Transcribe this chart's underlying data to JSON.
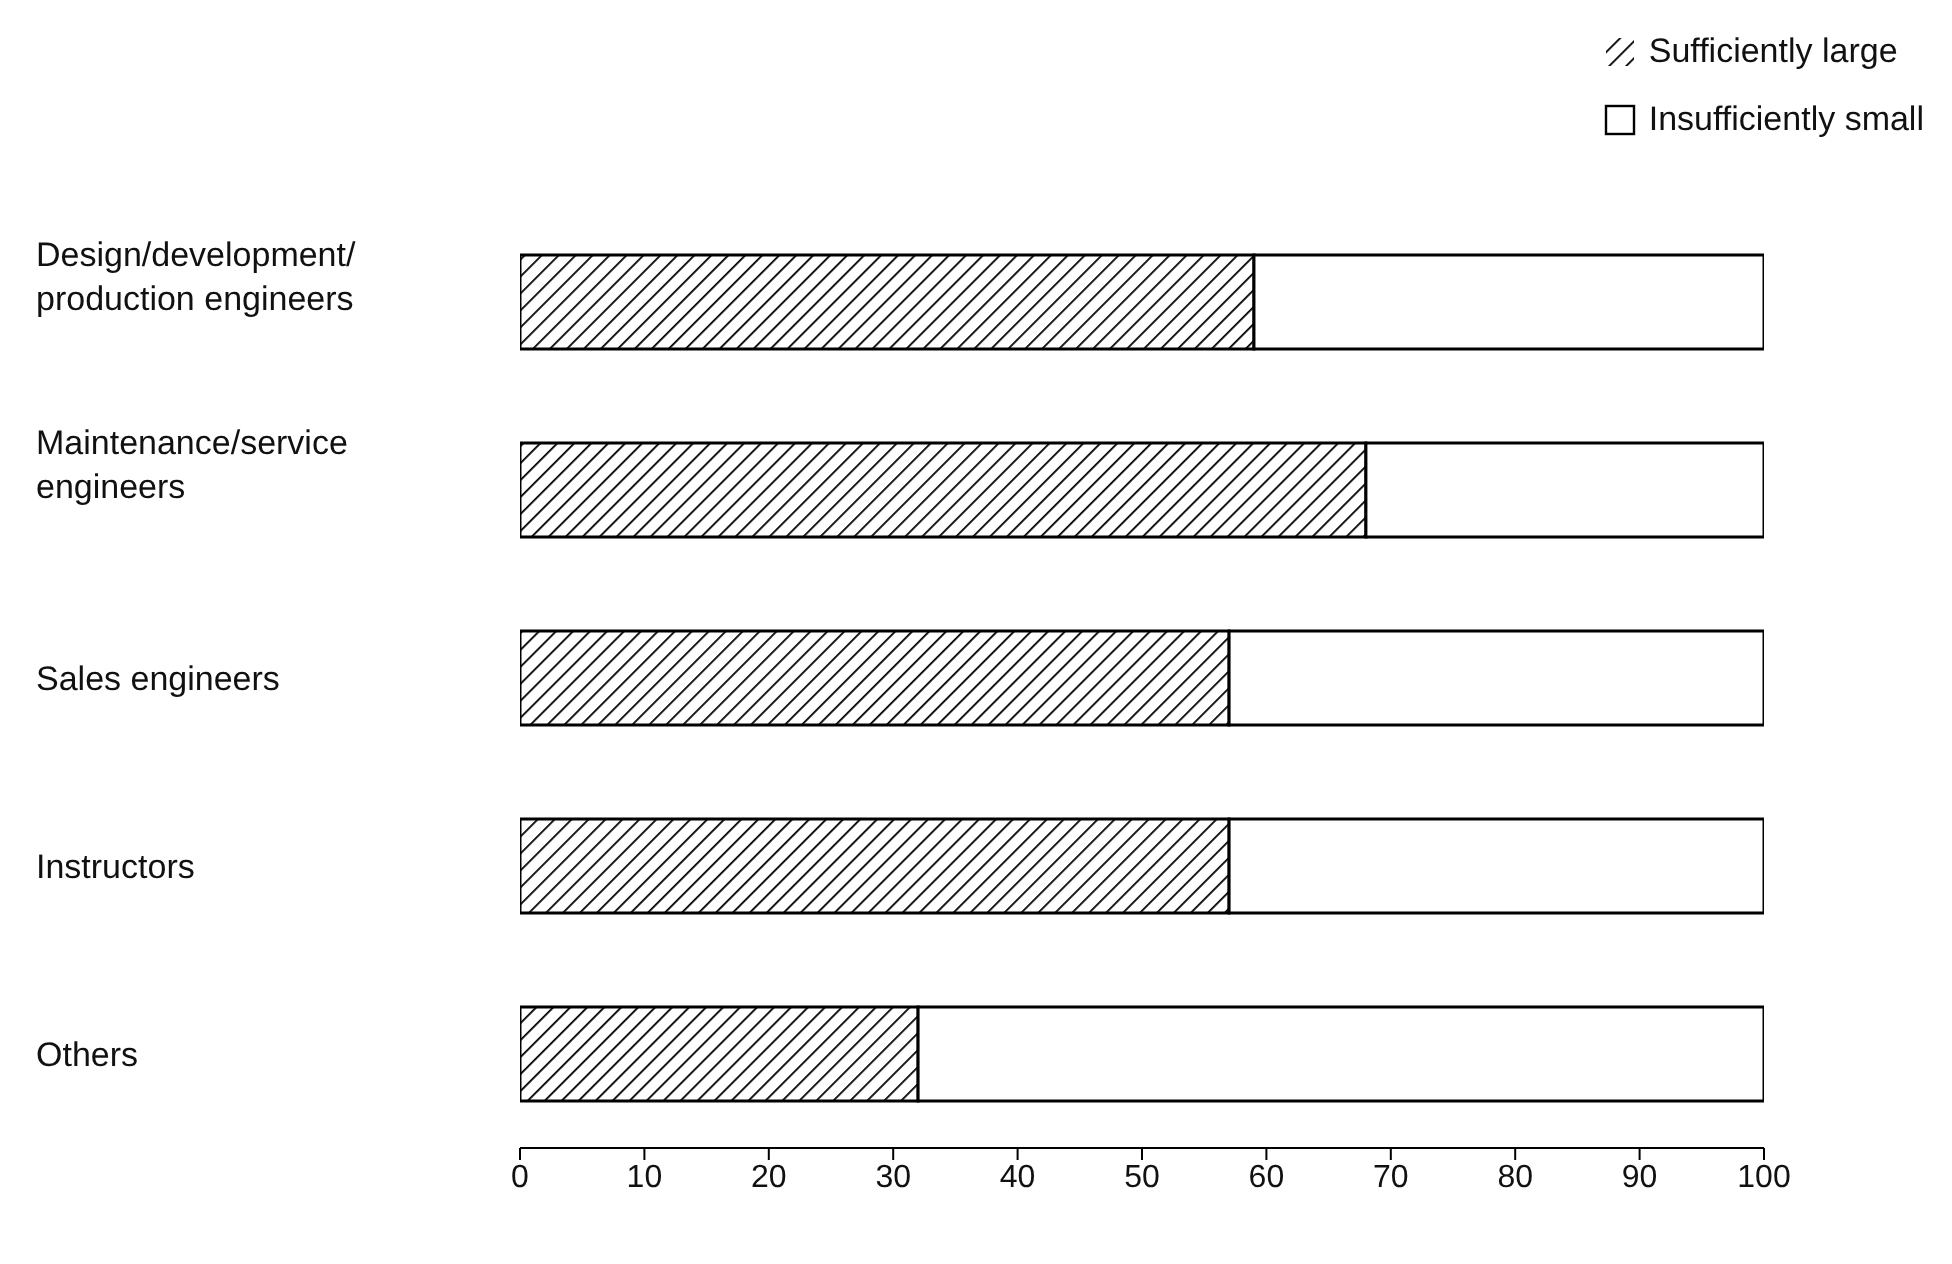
{
  "chart_data": {
    "type": "bar",
    "orientation": "horizontal",
    "stacked": true,
    "categories": [
      "Design/development/ production engineers",
      "Maintenance/service engineers",
      "Sales engineers",
      "Instructors",
      "Others"
    ],
    "series": [
      {
        "name": "Sufficiently large",
        "color": "#000000",
        "values": [
          59,
          68,
          57,
          57,
          32
        ]
      },
      {
        "name": "Insufficiently small",
        "color": "#ffffff",
        "values": [
          41,
          32,
          43,
          43,
          68
        ]
      }
    ],
    "xlim": [
      0,
      100
    ],
    "xticks": [
      0,
      10,
      20,
      30,
      40,
      50,
      60,
      70,
      80,
      90,
      100
    ],
    "legend": "top right"
  }
}
